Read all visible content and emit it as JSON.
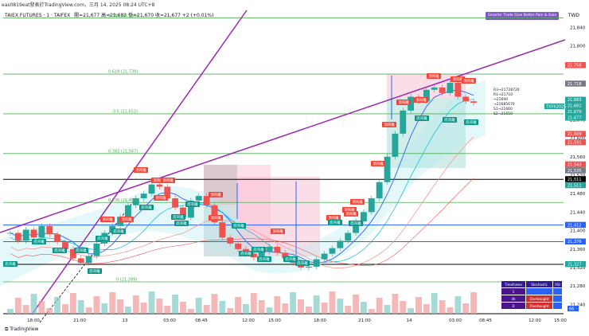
{
  "header": {
    "topline": "eas0819eat發表於TradingView.com，三月 14, 2025 08:24 UTC+8",
    "symbol_name": "TAIEX FUTURES · 1 · TAIFEX",
    "ohlc": "開=21,677  高=21,682  低=21,670  收=21,677  +2 (+0.01%)",
    "currency": "TWD",
    "indicator_title": "Smarter Trade Give Better Pain & Gain"
  },
  "footer": {
    "brand": "TradingView"
  },
  "colors": {
    "up": "#26a69a",
    "down": "#ef5350",
    "fib": "#4caf50",
    "trend": "#9c27b0",
    "blue": "#2962ff",
    "black": "#000000"
  },
  "chart_data": {
    "type": "candlestick",
    "ylim": [
      21200,
      21900
    ],
    "y_ticks": [
      21240,
      21280,
      21320,
      21360,
      21400,
      21440,
      21480,
      21520,
      21560,
      21600,
      21640,
      21680,
      21720,
      21760,
      21800,
      21840
    ],
    "x_ticks": [
      "18:00",
      "21:00",
      "13",
      "03:00",
      "08:45",
      "12:00",
      "15:00",
      "18:00",
      "21:00",
      "14",
      "03:00",
      "08:45",
      "12:00",
      "15:00"
    ],
    "fib_levels": [
      {
        "label": "0.786 (21,861)",
        "value": 21861
      },
      {
        "label": "0.618 (21,739)",
        "value": 21739
      },
      {
        "label": "0.5 (21,653)",
        "value": 21653
      },
      {
        "label": "0.382 (21,567)",
        "value": 21567
      },
      {
        "label": "0.236 (21,461)",
        "value": 21461
      },
      {
        "label": "0 (21,289)",
        "value": 21289
      }
    ],
    "horizontal_lines": [
      {
        "value": 21511,
        "color": "black"
      },
      {
        "value": 21412,
        "color": "blue"
      },
      {
        "value": 21376,
        "color": "blue"
      },
      {
        "value": 21327,
        "color": "black"
      },
      {
        "value": 21220,
        "color": "black"
      }
    ],
    "price_labels": [
      {
        "value": 21758,
        "color": "red",
        "text": "21,758"
      },
      {
        "value": 21718,
        "color": "gray",
        "text": "21,718"
      },
      {
        "value": 21683,
        "color": "green",
        "text": "21,683"
      },
      {
        "value": 21681,
        "color": "green",
        "text": "21,681"
      },
      {
        "value": 21679,
        "color": "green",
        "text": "21,679"
      },
      {
        "value": 21677,
        "color": "green",
        "text": "21,677"
      },
      {
        "value": 21609,
        "color": "red",
        "text": "21,609"
      },
      {
        "value": 21591,
        "color": "red",
        "text": "21,591"
      },
      {
        "value": 21543,
        "color": "red",
        "text": "21,543"
      },
      {
        "value": 21535,
        "color": "gray",
        "text": "21,535"
      },
      {
        "value": 21511,
        "color": "black",
        "text": "21,511"
      },
      {
        "value": 21511,
        "color": "green",
        "text": "21,511"
      },
      {
        "value": 21412,
        "color": "blue",
        "text": "21,412"
      },
      {
        "value": 21376,
        "color": "blue",
        "text": "21,376"
      },
      {
        "value": 21327,
        "color": "green",
        "text": "21,327"
      }
    ],
    "symbol_tag": "TXFK2025",
    "pivot_labels": [
      "R3→21728720",
      "R1→21710",
      "→21690",
      "→21685670",
      "S1→21660",
      "S2→21650"
    ],
    "signals_top": 20,
    "signals_bottom": 22,
    "top_label": "頂背離",
    "bottom_label": "底背離",
    "last_value": "66",
    "close": [
      21395,
      21378,
      21402,
      21385,
      21410,
      21392,
      21375,
      21360,
      21340,
      21330,
      21345,
      21372,
      21395,
      21410,
      21430,
      21455,
      21470,
      21480,
      21500,
      21495,
      21470,
      21450,
      21428,
      21465,
      21475,
      21455,
      21418,
      21385,
      21372,
      21360,
      21350,
      21342,
      21355,
      21365,
      21352,
      21340,
      21330,
      21320,
      21322,
      21338,
      21350,
      21362,
      21378,
      21395,
      21420,
      21440,
      21470,
      21505,
      21560,
      21610,
      21660,
      21690,
      21680,
      21705,
      21710,
      21698,
      21720,
      21690,
      21680,
      21677
    ]
  },
  "stoch_table": {
    "headers": [
      "Timeframe",
      "Stochastic",
      "RSI"
    ],
    "rows": [
      [
        "1",
        "",
        ""
      ],
      [
        "4h",
        "Overbought",
        ""
      ],
      [
        "D",
        "Overbought",
        ""
      ]
    ]
  }
}
